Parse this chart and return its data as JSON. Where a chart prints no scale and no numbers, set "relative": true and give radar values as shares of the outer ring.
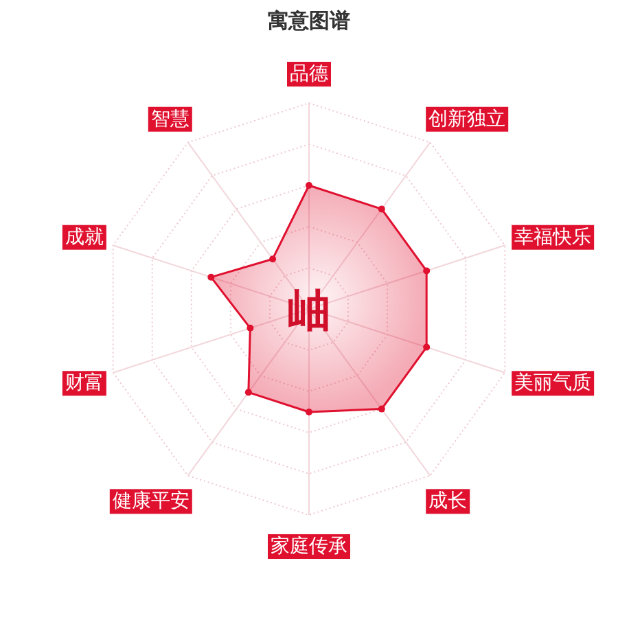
{
  "chart_data": {
    "type": "radar",
    "title": "寓意图谱",
    "relative": true,
    "grid": true,
    "marker": "circle",
    "categories": [
      "品德",
      "创新独立",
      "幸福快乐",
      "美丽气质",
      "成长",
      "家庭传承",
      "健康平安",
      "财富",
      "成就",
      "智慧"
    ],
    "series": [
      {
        "color": "#e0102f",
        "values": [
          0.6,
          0.6,
          0.6,
          0.6,
          0.6,
          0.5,
          0.5,
          0.3,
          0.5,
          0.3
        ]
      }
    ],
    "annotations": [
      "岫"
    ]
  }
}
